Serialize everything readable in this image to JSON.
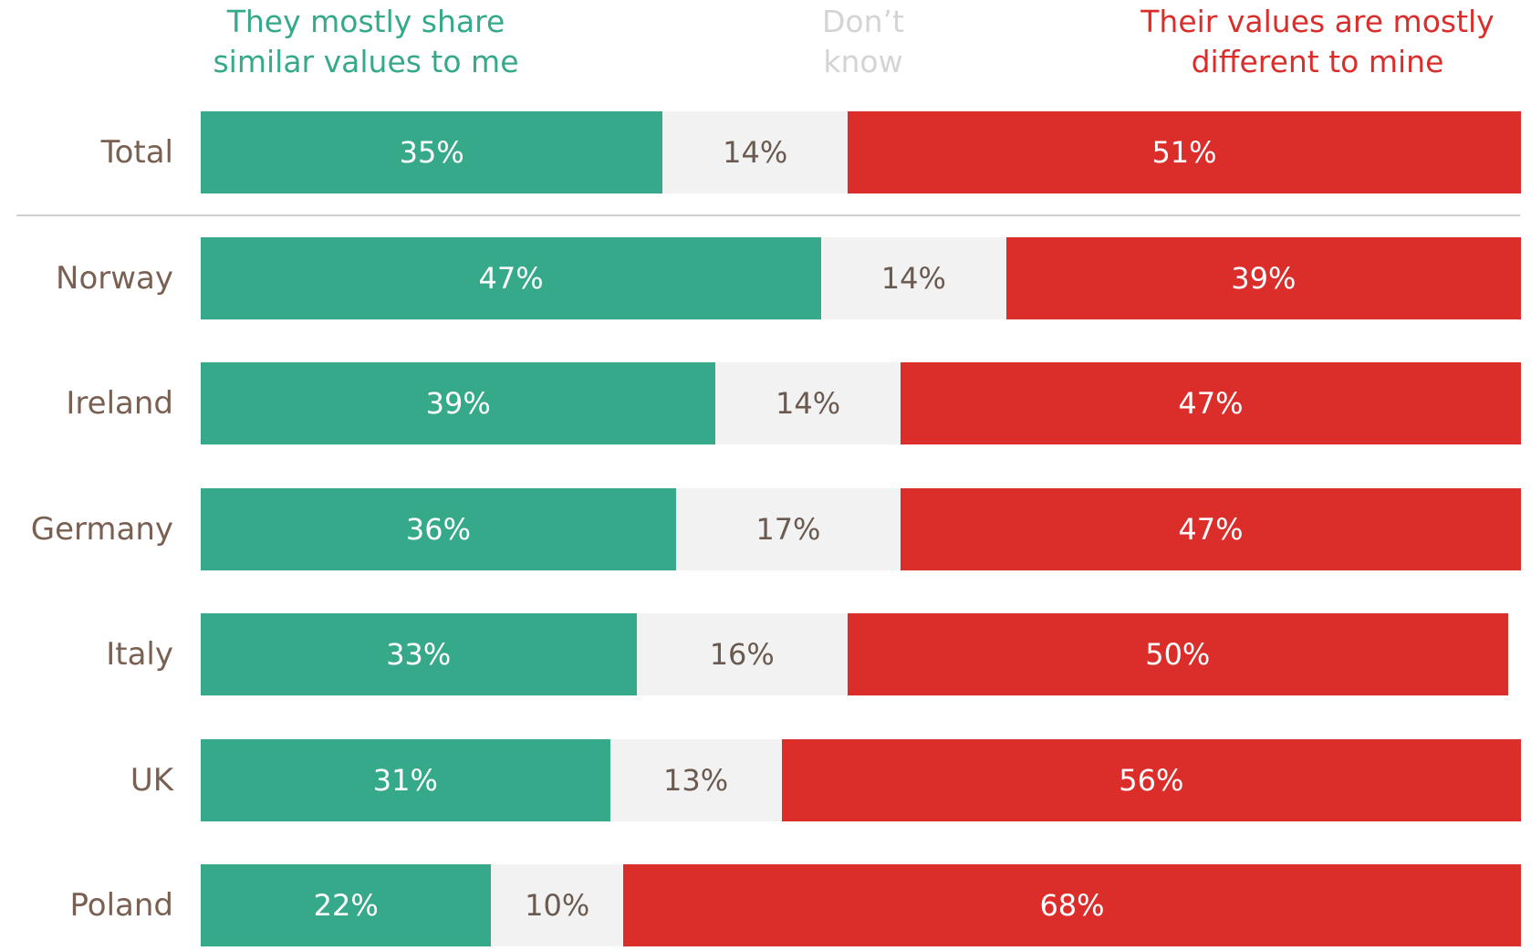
{
  "chart_data": {
    "type": "stacked-bar-horizontal",
    "categories": [
      "Total",
      "Norway",
      "Ireland",
      "Germany",
      "Italy",
      "UK",
      "Poland"
    ],
    "series": [
      {
        "name": "They mostly share similar values to me",
        "color": "#35a98a",
        "values": [
          35,
          47,
          39,
          36,
          33,
          31,
          22
        ],
        "value_labels": [
          "35%",
          "47%",
          "39%",
          "36%",
          "33%",
          "31%",
          "22%"
        ]
      },
      {
        "name": "Don’t know",
        "color": "#f2f2f2",
        "values": [
          14,
          14,
          14,
          17,
          16,
          13,
          10
        ],
        "value_labels": [
          "14%",
          "14%",
          "14%",
          "17%",
          "16%",
          "13%",
          "10%"
        ]
      },
      {
        "name": "Their values are mostly different to mine",
        "color": "#db2e2b",
        "values": [
          51,
          39,
          47,
          47,
          50,
          56,
          68
        ],
        "value_labels": [
          "51%",
          "39%",
          "47%",
          "47%",
          "50%",
          "56%",
          "68%"
        ]
      }
    ],
    "xlim": [
      0,
      100
    ]
  }
}
